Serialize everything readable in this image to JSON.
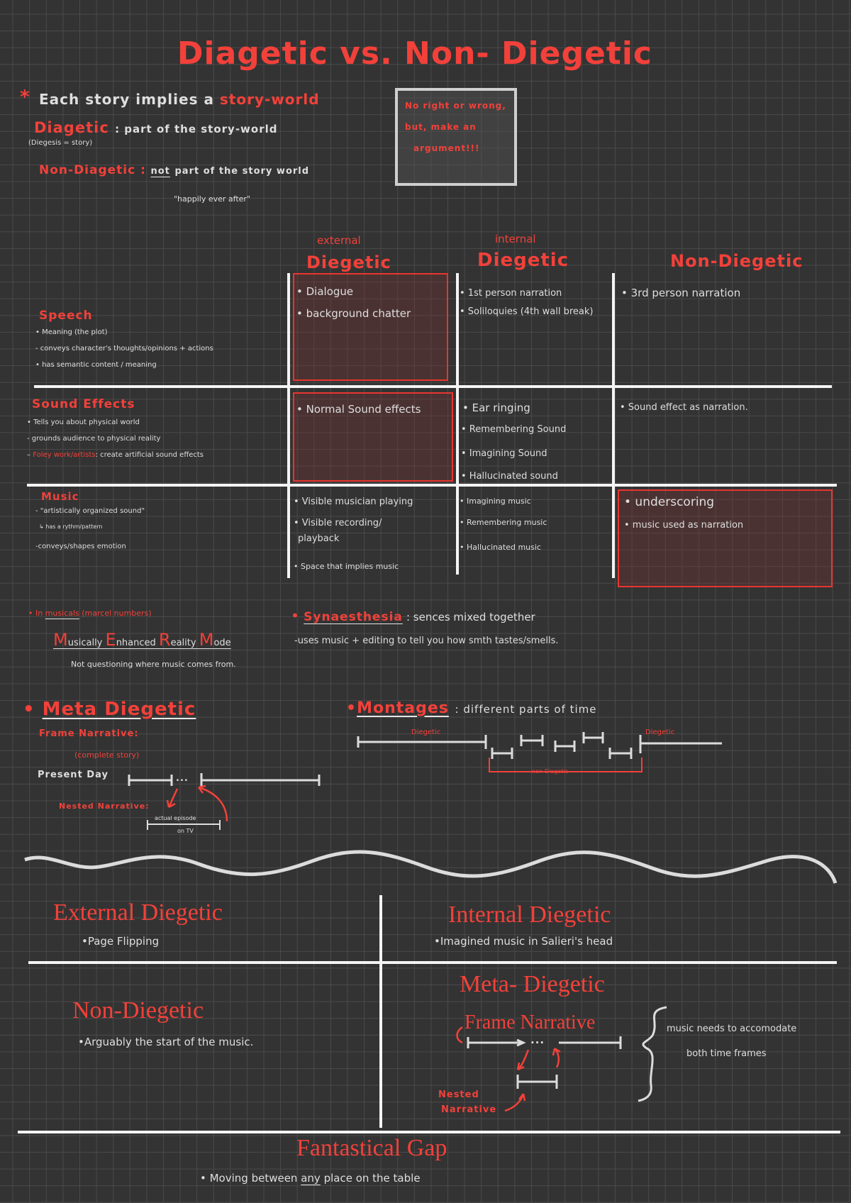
{
  "title": "Diagetic vs. Non- Diegetic",
  "intro": {
    "star": "*",
    "story_world_prefix": "Each story implies a",
    "story_world_term": "story-world",
    "diegetic_term": "Diagetic",
    "diegetic_def": ": part of the story-world",
    "diegetic_note": "(Diegesis = story)",
    "non_diegetic_term": "Non-Diagetic :",
    "non_diegetic_not": "not",
    "non_diegetic_def": "part of the story world",
    "non_diegetic_example": "\"happily ever after\""
  },
  "callout": [
    "No right or wrong,",
    "but, make an",
    "argument!!!"
  ],
  "table": {
    "columns": [
      {
        "sub": "external",
        "label": "Diegetic"
      },
      {
        "sub": "internal",
        "label": "Diegetic"
      },
      {
        "sub": "",
        "label": "Non-Diegetic"
      }
    ],
    "rows": [
      {
        "label": "Speech",
        "notes": [
          "• Meaning (the plot)",
          "- conveys character's thoughts/opinions + actions",
          "• has semantic content / meaning"
        ],
        "external": [
          "• Dialogue",
          "• background chatter"
        ],
        "internal": [
          "• 1st person narration",
          "• Soliloquies (4th wall break)"
        ],
        "non": [
          "• 3rd person narration"
        ]
      },
      {
        "label": "Sound Effects",
        "notes": [
          "• Tells you about physical world",
          "- grounds audience to physical reality",
          "Foley work/artists",
          ": create artificial sound effects"
        ],
        "external": [
          "• Normal Sound effects"
        ],
        "internal": [
          "• Ear ringing",
          "• Remembering Sound",
          "• Imagining Sound",
          "• Hallucinated sound"
        ],
        "non": [
          "• Sound effect as narration."
        ]
      },
      {
        "label": "Music",
        "notes": [
          "- \"artistically organized sound\"",
          "↳ has a rythm/pattern",
          "-conveys/shapes emotion"
        ],
        "external": [
          "• Visible musician playing",
          "• Visible recording/",
          "playback",
          "• Space that implies music"
        ],
        "internal": [
          "• Imagining music",
          "• Remembering music",
          "• Hallucinated music"
        ],
        "non": [
          "• underscoring",
          "• music used as narration"
        ]
      }
    ]
  },
  "musicals": {
    "bullet": "• In",
    "term": "musicals",
    "paren": "(marcel numbers)",
    "acronym": [
      {
        "cap": "M",
        "rest": "usically "
      },
      {
        "cap": "E",
        "rest": "nhanced "
      },
      {
        "cap": "R",
        "rest": "eality "
      },
      {
        "cap": "M",
        "rest": "ode"
      }
    ],
    "note": "Not questioning where music comes from."
  },
  "synaesthesia": {
    "term": "Synaesthesia",
    "def": ": sences mixed together",
    "note": "-uses music + editing to tell you how smth tastes/smells."
  },
  "meta_diegetic": {
    "title": "Meta Diegetic",
    "frame": "Frame Narrative:",
    "frame_note": "(complete story)",
    "present": "Present Day",
    "dots": "...",
    "nested": "Nested Narrative:",
    "episode": [
      "actual episode",
      "on TV"
    ]
  },
  "montages": {
    "title": "Montages",
    "def": ": different parts of time",
    "left_label": "Diegetic",
    "right_label": "Diegetic",
    "bracket_label": "non-Diegetic"
  },
  "summary": {
    "external": {
      "title": "External Diegetic",
      "item": "•Page Flipping"
    },
    "internal": {
      "title": "Internal Diegetic",
      "item": "•Imagined music in Salieri's head"
    },
    "non": {
      "title": "Non-Diegetic",
      "item": "•Arguably the start of the music."
    },
    "meta": {
      "title": "Meta- Diegetic",
      "frame": "Frame Narrative",
      "dots": "...",
      "nested": [
        "Nested",
        "Narrative"
      ],
      "note": [
        "music needs to accomodate",
        "both time frames"
      ]
    },
    "gap": {
      "title": "Fantastical Gap",
      "item_prefix": "• Moving between",
      "item_any": "any",
      "item_suffix": "place on the table"
    }
  },
  "colors": {
    "background": "#333333",
    "grid": "#4a4a4a",
    "accent_red": "#f2413a",
    "ink": "#dedede",
    "highlight_fill": "#4a3535"
  }
}
